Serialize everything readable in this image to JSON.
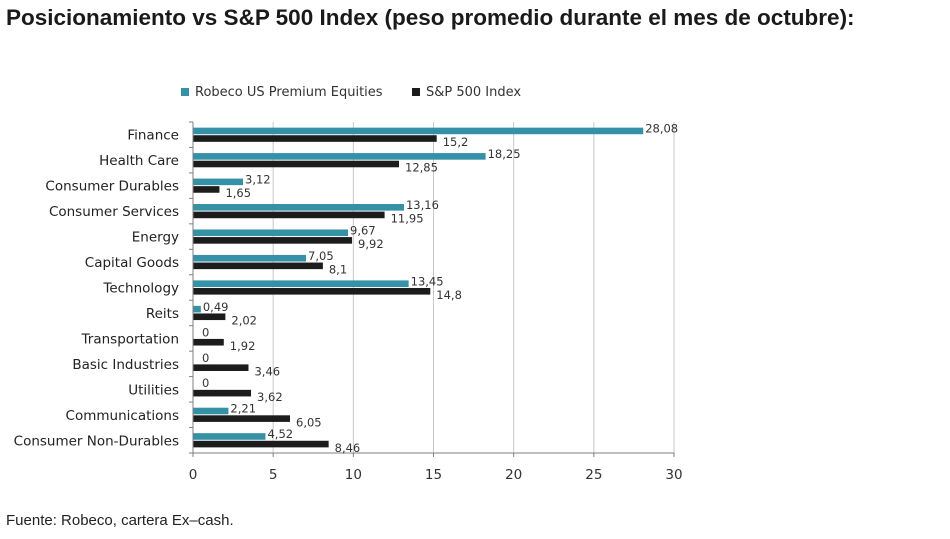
{
  "title": "Posicionamiento vs S&P 500 Index (peso promedio durante el mes de octubre):",
  "source": "Fuente: Robeco, cartera Ex–cash.",
  "colors": {
    "series1": "#3591a6",
    "series2": "#1c1c1c",
    "grid": "#c8c8c8",
    "axis": "#7f7f7f"
  },
  "chart_data": {
    "type": "bar",
    "orientation": "horizontal",
    "categories": [
      "Finance",
      "Health Care",
      "Consumer Durables",
      "Consumer Services",
      "Energy",
      "Capital Goods",
      "Technology",
      "Reits",
      "Transportation",
      "Basic Industries",
      "Utilities",
      "Communications",
      "Consumer Non-Durables"
    ],
    "series": [
      {
        "name": "Robeco US Premium Equities",
        "values": [
          28.08,
          18.25,
          3.12,
          13.16,
          9.67,
          7.05,
          13.45,
          0.49,
          0,
          0,
          0,
          2.21,
          4.52
        ],
        "labels": [
          "28,08",
          "18,25",
          "3,12",
          "13,16",
          "9,67",
          "7,05",
          "13,45",
          "0,49",
          "0",
          "0",
          "0",
          "2,21",
          "4,52"
        ]
      },
      {
        "name": "S&P 500 Index",
        "values": [
          15.2,
          12.85,
          1.65,
          11.95,
          9.92,
          8.1,
          14.8,
          2.02,
          1.92,
          3.46,
          3.62,
          6.05,
          8.46
        ],
        "labels": [
          "15,2",
          "12,85",
          "1,65",
          "11,95",
          "9,92",
          "8,1",
          "14,8",
          "2,02",
          "1,92",
          "3,46",
          "3,62",
          "6,05",
          "8,46"
        ]
      }
    ],
    "xlim": [
      0,
      30
    ],
    "xticks": [
      "0",
      "5",
      "10",
      "15",
      "20",
      "25",
      "30"
    ],
    "grid": true,
    "legend": "top"
  }
}
